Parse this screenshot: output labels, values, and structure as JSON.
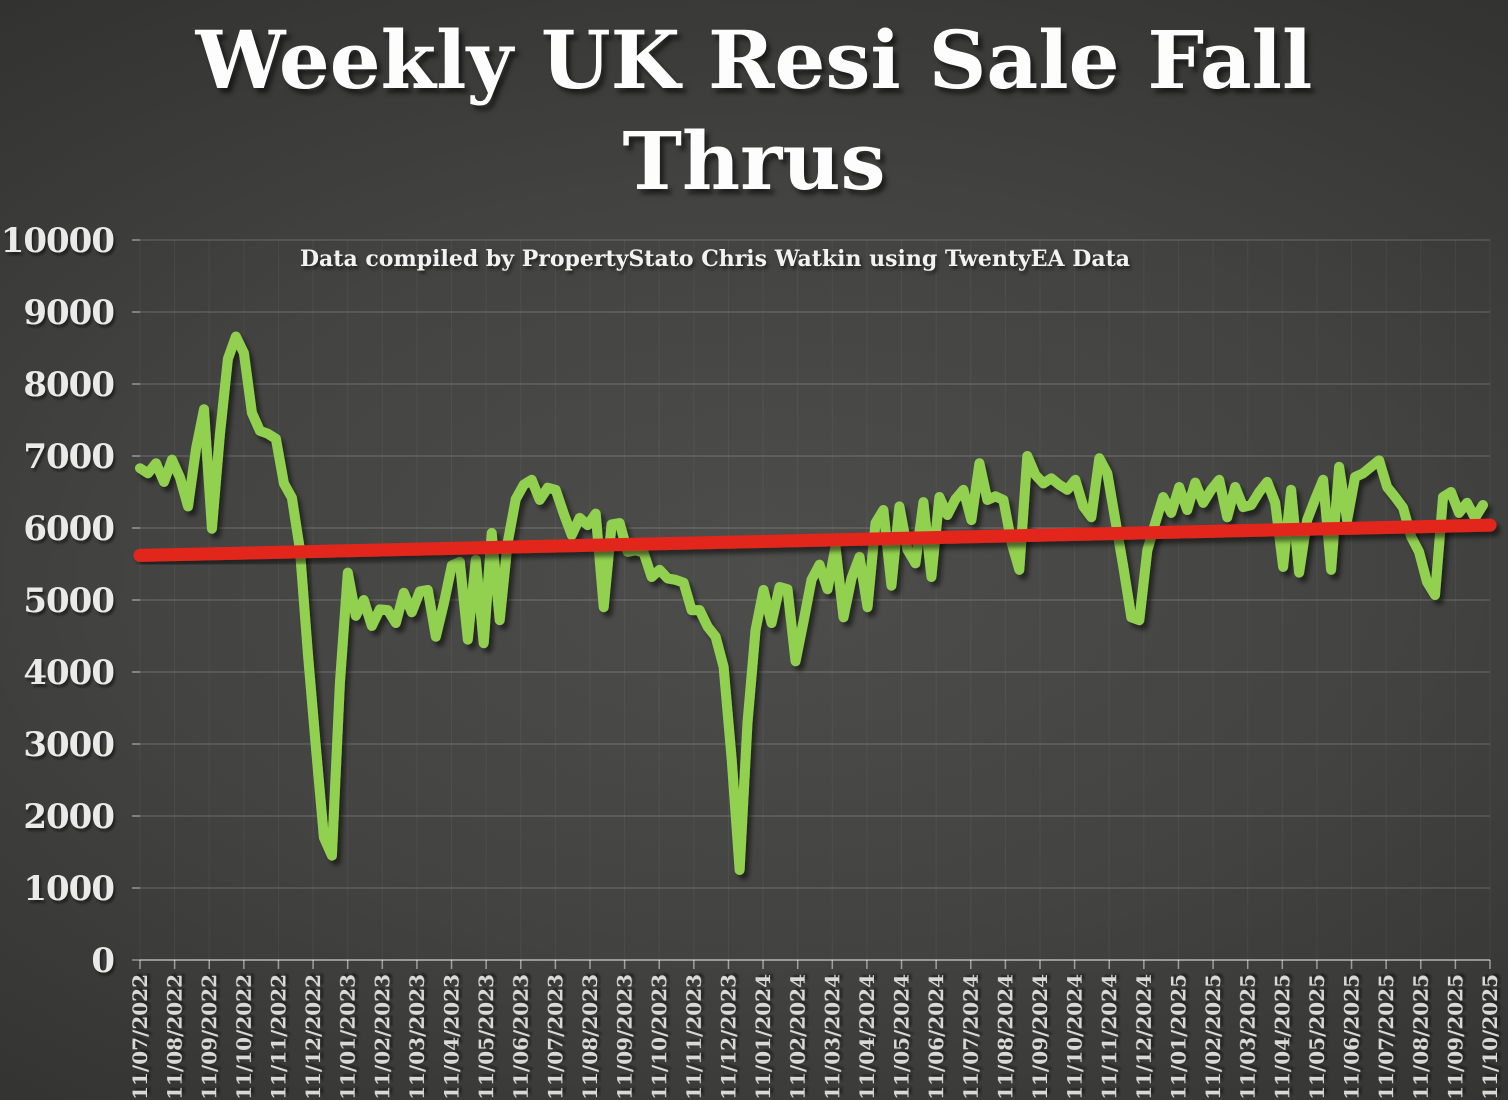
{
  "page": {
    "title_display": "Weekly UK Resi Sale Fall\nThrus",
    "subtitle": "Data compiled by PropertyStato Chris Watkin using TwentyEA Data"
  },
  "chart_data": {
    "type": "line",
    "title": "Weekly UK Resi Sale Fall Thrus",
    "subtitle": "Data compiled by PropertyStato Chris Watkin using TwentyEA Data",
    "xlabel": "",
    "ylabel": "",
    "ylim": [
      0,
      10000
    ],
    "grid": "horizontal",
    "legend": "none",
    "background": "dark-gray-radial",
    "y_ticks": [
      0,
      1000,
      2000,
      3000,
      4000,
      5000,
      6000,
      7000,
      8000,
      9000,
      10000
    ],
    "x_labels": [
      "11/07/2022",
      "11/08/2022",
      "11/09/2022",
      "11/10/2022",
      "11/11/2022",
      "11/12/2022",
      "11/01/2023",
      "11/02/2023",
      "11/03/2023",
      "11/04/2023",
      "11/05/2023",
      "11/06/2023",
      "11/07/2023",
      "11/08/2023",
      "11/09/2023",
      "11/10/2023",
      "11/11/2023",
      "11/12/2023",
      "11/01/2024",
      "11/02/2024",
      "11/03/2024",
      "11/04/2024",
      "11/05/2024",
      "11/06/2024",
      "11/07/2024",
      "11/08/2024",
      "11/09/2024",
      "11/10/2024",
      "11/11/2024",
      "11/12/2024",
      "11/01/2025",
      "11/02/2025",
      "11/03/2025",
      "11/04/2025",
      "11/05/2025",
      "11/06/2025",
      "11/07/2025",
      "11/08/2025",
      "11/09/2025",
      "11/10/2025"
    ],
    "series": [
      {
        "name": "Weekly UK residential sale fall thrus",
        "color": "#92d050",
        "cadence": "weekly",
        "values": [
          6830,
          6760,
          6900,
          6640,
          6950,
          6700,
          6300,
          7100,
          7650,
          5990,
          7300,
          8350,
          8660,
          8430,
          7600,
          7350,
          7310,
          7240,
          6620,
          6420,
          5700,
          4250,
          2950,
          1700,
          1450,
          3850,
          5380,
          4780,
          5000,
          4640,
          4870,
          4860,
          4680,
          5100,
          4830,
          5120,
          5140,
          4490,
          4950,
          5480,
          5530,
          4450,
          5560,
          4400,
          5930,
          4720,
          5800,
          6400,
          6600,
          6670,
          6390,
          6560,
          6530,
          6200,
          5900,
          6140,
          6040,
          6200,
          4900,
          6050,
          6070,
          5670,
          5690,
          5660,
          5320,
          5420,
          5300,
          5280,
          5240,
          4860,
          4860,
          4630,
          4490,
          4070,
          2800,
          1250,
          3300,
          4580,
          5140,
          4680,
          5180,
          5150,
          4150,
          4700,
          5280,
          5490,
          5150,
          5740,
          4760,
          5300,
          5600,
          4900,
          6070,
          6250,
          5200,
          6300,
          5700,
          5510,
          6360,
          5320,
          6430,
          6180,
          6400,
          6530,
          6110,
          6900,
          6390,
          6440,
          6390,
          5800,
          5420,
          7000,
          6740,
          6620,
          6690,
          6600,
          6530,
          6670,
          6300,
          6150,
          6970,
          6760,
          6110,
          5460,
          4760,
          4720,
          5690,
          6070,
          6430,
          6210,
          6570,
          6250,
          6630,
          6350,
          6530,
          6670,
          6150,
          6570,
          6290,
          6320,
          6500,
          6640,
          6350,
          5460,
          6530,
          5380,
          6110,
          6400,
          6670,
          5420,
          6850,
          6110,
          6710,
          6760,
          6850,
          6940,
          6570,
          6430,
          6280,
          5880,
          5670,
          5250,
          5070,
          6430,
          6500,
          6210,
          6350,
          6140,
          6320
        ]
      }
    ],
    "trend": {
      "name": "linear trend",
      "color": "#e2281c",
      "start": 5620,
      "end": 6040
    }
  },
  "colors": {
    "series_green": "#92d050",
    "trend_red": "#e2281c",
    "label_light": "#eaeaea",
    "gridline": "rgba(255,255,255,0.22)"
  }
}
